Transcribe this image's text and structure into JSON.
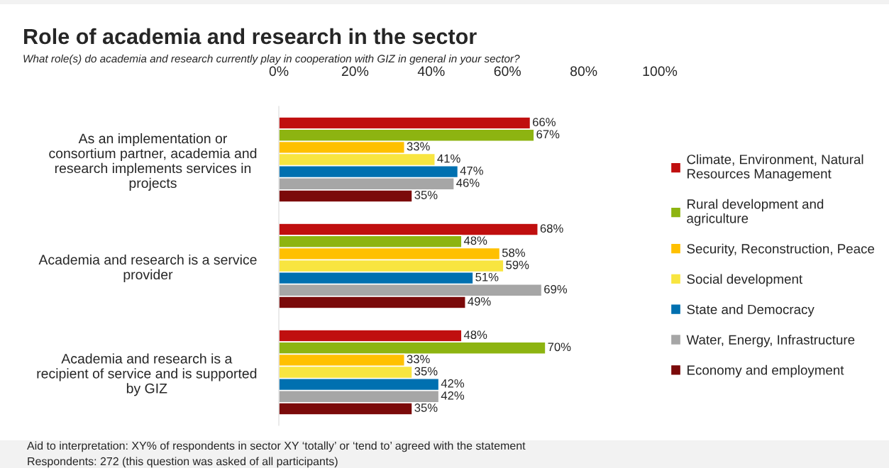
{
  "chart_data": {
    "type": "bar",
    "orientation": "horizontal",
    "title": "Role of academia and research in the sector",
    "subtitle": "What role(s) do academia and research currently play in cooperation with GIZ in general in your sector?",
    "categories": [
      "As an implementation or\nconsortium partner, academia and\nresearch implements services in\nprojects",
      "Academia and research is a service\nprovider",
      "Academia and research is a\nrecipient of service and is supported\nby GIZ"
    ],
    "series": [
      {
        "name": "Climate, Environment, Natural\nResources Management",
        "color": "#c00f0f",
        "values": [
          66,
          68,
          48
        ],
        "value_labels": [
          "66%",
          "68%",
          "48%"
        ]
      },
      {
        "name": "Rural development and\nagriculture",
        "color": "#8db411",
        "values": [
          67,
          48,
          70
        ],
        "value_labels": [
          "67%",
          "48%",
          "70%"
        ]
      },
      {
        "name": "Security, Reconstruction, Peace",
        "color": "#ffc000",
        "values": [
          33,
          58,
          33
        ],
        "value_labels": [
          "33%",
          "58%",
          "33%"
        ]
      },
      {
        "name": "Social development",
        "color": "#f8e540",
        "values": [
          41,
          59,
          35
        ],
        "value_labels": [
          "41%",
          "59%",
          "35%"
        ]
      },
      {
        "name": "State and Democracy",
        "color": "#0070b0",
        "values": [
          47,
          51,
          42
        ],
        "value_labels": [
          "47%",
          "51%",
          "42%"
        ]
      },
      {
        "name": "Water, Energy, Infrastructure",
        "color": "#a6a6a6",
        "values": [
          46,
          69,
          42
        ],
        "value_labels": [
          "46%",
          "69%",
          "42%"
        ]
      },
      {
        "name": "Economy and employment",
        "color": "#7b0a0a",
        "values": [
          35,
          49,
          35
        ],
        "value_labels": [
          "35%",
          "49%",
          "35%"
        ]
      }
    ],
    "xlim": [
      0,
      100
    ],
    "xticks": [
      {
        "value": 0,
        "label": "0%"
      },
      {
        "value": 20,
        "label": "20%"
      },
      {
        "value": 40,
        "label": "40%"
      },
      {
        "value": 60,
        "label": "60%"
      },
      {
        "value": 80,
        "label": "80%"
      },
      {
        "value": 100,
        "label": "100%"
      }
    ],
    "grid": false,
    "legend": "right",
    "annotations": [
      "Aid to interpretation: XY% of respondents in sector XY ‘totally’ or ‘tend to’ agreed with the statement",
      "Respondents: 272 (this question was asked of all participants)"
    ]
  }
}
